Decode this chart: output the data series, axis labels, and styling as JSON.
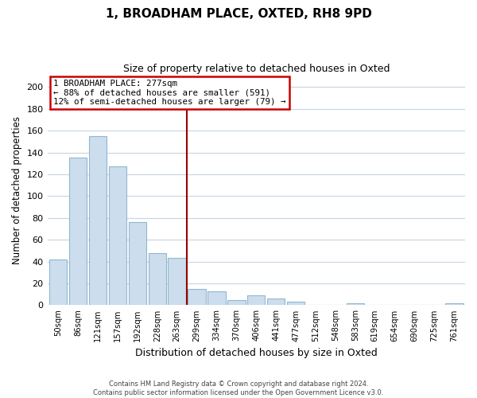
{
  "title": "1, BROADHAM PLACE, OXTED, RH8 9PD",
  "subtitle": "Size of property relative to detached houses in Oxted",
  "xlabel": "Distribution of detached houses by size in Oxted",
  "ylabel": "Number of detached properties",
  "bar_color": "#ccdded",
  "bar_edge_color": "#90b8d0",
  "categories": [
    "50sqm",
    "86sqm",
    "121sqm",
    "157sqm",
    "192sqm",
    "228sqm",
    "263sqm",
    "299sqm",
    "334sqm",
    "370sqm",
    "406sqm",
    "441sqm",
    "477sqm",
    "512sqm",
    "548sqm",
    "583sqm",
    "619sqm",
    "654sqm",
    "690sqm",
    "725sqm",
    "761sqm"
  ],
  "values": [
    42,
    135,
    155,
    127,
    76,
    48,
    43,
    15,
    13,
    5,
    9,
    6,
    3,
    0,
    0,
    2,
    0,
    0,
    0,
    0,
    2
  ],
  "vline_index": 6,
  "vline_color": "#990000",
  "annotation_title": "1 BROADHAM PLACE: 277sqm",
  "annotation_line1": "← 88% of detached houses are smaller (591)",
  "annotation_line2": "12% of semi-detached houses are larger (79) →",
  "annotation_box_edge": "#cc0000",
  "ylim": [
    0,
    210
  ],
  "yticks": [
    0,
    20,
    40,
    60,
    80,
    100,
    120,
    140,
    160,
    180,
    200
  ],
  "footer1": "Contains HM Land Registry data © Crown copyright and database right 2024.",
  "footer2": "Contains public sector information licensed under the Open Government Licence v3.0.",
  "bg_color": "#ffffff",
  "grid_color": "#c8d4e0"
}
